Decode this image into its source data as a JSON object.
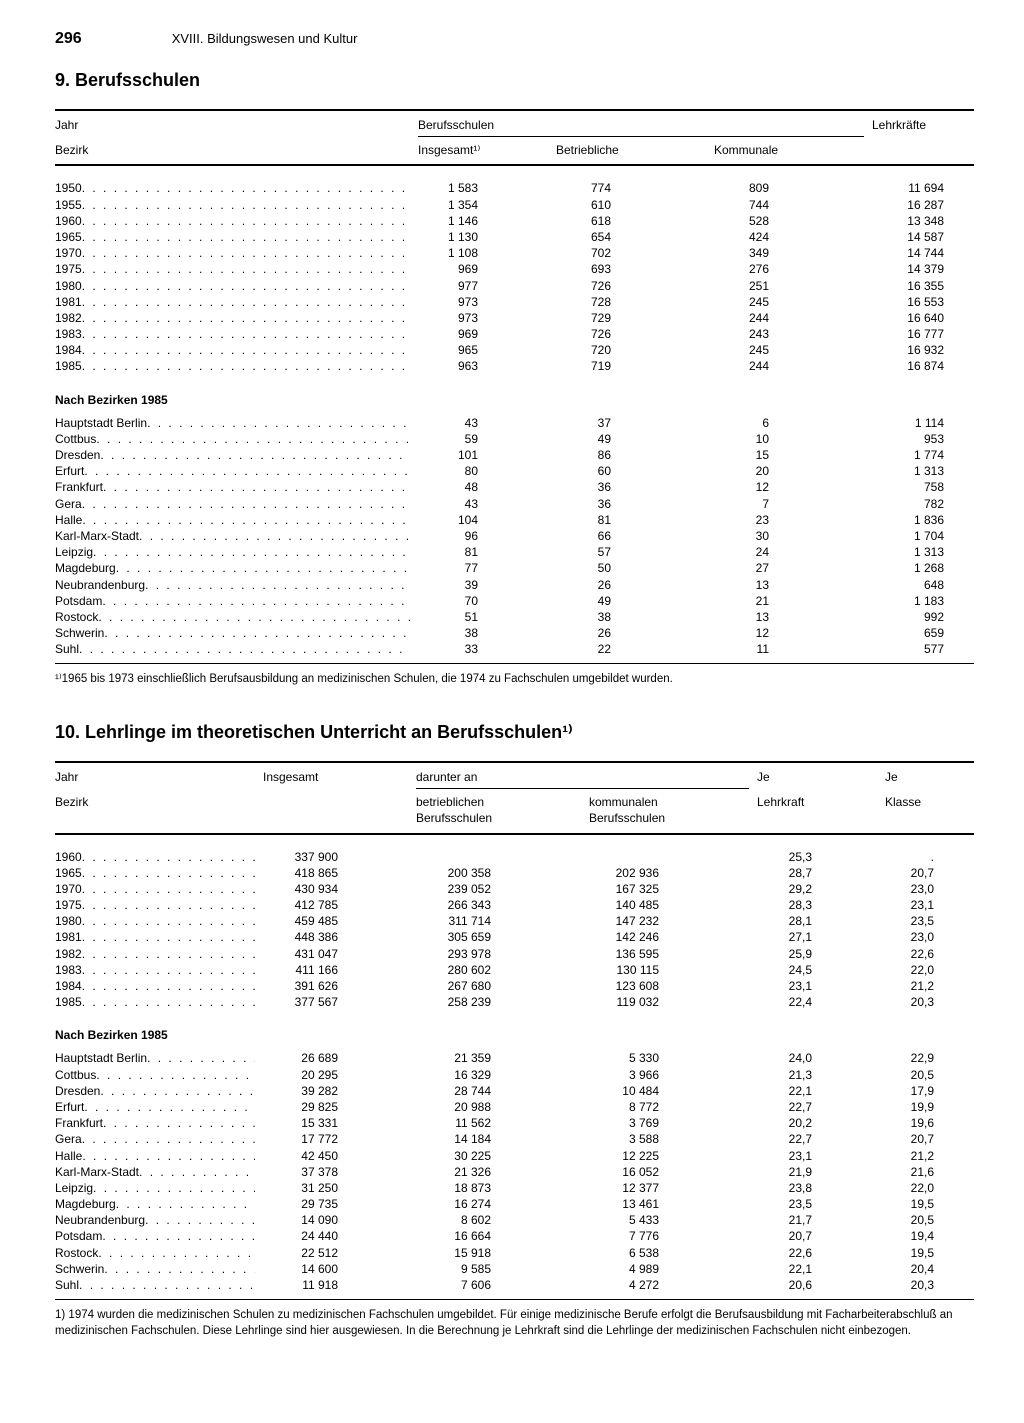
{
  "page_number": "296",
  "chapter": "XVIII. Bildungswesen und Kultur",
  "table1": {
    "title": "9. Berufsschulen",
    "row_header1": "Jahr",
    "row_header2": "Bezirk",
    "group_header": "Berufsschulen",
    "col_insgesamt": "Insgesamt¹⁾",
    "col_betrieblich": "Betriebliche",
    "col_kommunal": "Kommunale",
    "col_lehrkraefte": "Lehrkräfte",
    "years": [
      {
        "label": "1950",
        "insg": "1 583",
        "betr": "774",
        "komm": "809",
        "lk": "11 694"
      },
      {
        "label": "1955",
        "insg": "1 354",
        "betr": "610",
        "komm": "744",
        "lk": "16 287"
      },
      {
        "label": "1960",
        "insg": "1 146",
        "betr": "618",
        "komm": "528",
        "lk": "13 348"
      },
      {
        "label": "1965",
        "insg": "1 130",
        "betr": "654",
        "komm": "424",
        "lk": "14 587"
      },
      {
        "label": "1970",
        "insg": "1 108",
        "betr": "702",
        "komm": "349",
        "lk": "14 744"
      },
      {
        "label": "1975",
        "insg": "969",
        "betr": "693",
        "komm": "276",
        "lk": "14 379"
      },
      {
        "label": "1980",
        "insg": "977",
        "betr": "726",
        "komm": "251",
        "lk": "16 355"
      },
      {
        "label": "1981",
        "insg": "973",
        "betr": "728",
        "komm": "245",
        "lk": "16 553"
      },
      {
        "label": "1982",
        "insg": "973",
        "betr": "729",
        "komm": "244",
        "lk": "16 640"
      },
      {
        "label": "1983",
        "insg": "969",
        "betr": "726",
        "komm": "243",
        "lk": "16 777"
      },
      {
        "label": "1984",
        "insg": "965",
        "betr": "720",
        "komm": "245",
        "lk": "16 932"
      },
      {
        "label": "1985",
        "insg": "963",
        "betr": "719",
        "komm": "244",
        "lk": "16 874"
      }
    ],
    "bezirk_header": "Nach Bezirken 1985",
    "bezirke": [
      {
        "label": "Hauptstadt Berlin",
        "insg": "43",
        "betr": "37",
        "komm": "6",
        "lk": "1 114"
      },
      {
        "label": "Cottbus",
        "insg": "59",
        "betr": "49",
        "komm": "10",
        "lk": "953"
      },
      {
        "label": "Dresden",
        "insg": "101",
        "betr": "86",
        "komm": "15",
        "lk": "1 774"
      },
      {
        "label": "Erfurt",
        "insg": "80",
        "betr": "60",
        "komm": "20",
        "lk": "1 313"
      },
      {
        "label": "Frankfurt",
        "insg": "48",
        "betr": "36",
        "komm": "12",
        "lk": "758"
      },
      {
        "label": "Gera",
        "insg": "43",
        "betr": "36",
        "komm": "7",
        "lk": "782"
      },
      {
        "label": "Halle",
        "insg": "104",
        "betr": "81",
        "komm": "23",
        "lk": "1 836"
      },
      {
        "label": "Karl-Marx-Stadt",
        "insg": "96",
        "betr": "66",
        "komm": "30",
        "lk": "1 704"
      },
      {
        "label": "Leipzig",
        "insg": "81",
        "betr": "57",
        "komm": "24",
        "lk": "1 313"
      },
      {
        "label": "Magdeburg",
        "insg": "77",
        "betr": "50",
        "komm": "27",
        "lk": "1 268"
      },
      {
        "label": "Neubrandenburg",
        "insg": "39",
        "betr": "26",
        "komm": "13",
        "lk": "648"
      },
      {
        "label": "Potsdam",
        "insg": "70",
        "betr": "49",
        "komm": "21",
        "lk": "1 183"
      },
      {
        "label": "Rostock",
        "insg": "51",
        "betr": "38",
        "komm": "13",
        "lk": "992"
      },
      {
        "label": "Schwerin",
        "insg": "38",
        "betr": "26",
        "komm": "12",
        "lk": "659"
      },
      {
        "label": "Suhl",
        "insg": "33",
        "betr": "22",
        "komm": "11",
        "lk": "577"
      }
    ],
    "footnote": "¹⁾1965 bis 1973 einschließlich Berufsausbildung an medizinischen Schulen, die 1974 zu Fachschulen umgebildet wurden."
  },
  "table2": {
    "title": "10. Lehrlinge im theoretischen Unterricht an Berufsschulen¹⁾",
    "row_header1": "Jahr",
    "row_header2": "Bezirk",
    "col_insgesamt": "Insgesamt",
    "group_header": "darunter an",
    "col_betrieblich1": "betrieblichen",
    "col_betrieblich2": "Berufsschulen",
    "col_kommunal1": "kommunalen",
    "col_kommunal2": "Berufsschulen",
    "col_je_lk1": "Je",
    "col_je_lk2": "Lehrkraft",
    "col_je_kl1": "Je",
    "col_je_kl2": "Klasse",
    "years": [
      {
        "label": "1960",
        "insg": "337 900",
        "betr": "",
        "komm": "",
        "jelk": "25,3",
        "jekl": "."
      },
      {
        "label": "1965",
        "insg": "418 865",
        "betr": "200 358",
        "komm": "202 936",
        "jelk": "28,7",
        "jekl": "20,7"
      },
      {
        "label": "1970",
        "insg": "430 934",
        "betr": "239 052",
        "komm": "167 325",
        "jelk": "29,2",
        "jekl": "23,0"
      },
      {
        "label": "1975",
        "insg": "412 785",
        "betr": "266 343",
        "komm": "140 485",
        "jelk": "28,3",
        "jekl": "23,1"
      },
      {
        "label": "1980",
        "insg": "459 485",
        "betr": "311 714",
        "komm": "147 232",
        "jelk": "28,1",
        "jekl": "23,5"
      },
      {
        "label": "1981",
        "insg": "448 386",
        "betr": "305 659",
        "komm": "142 246",
        "jelk": "27,1",
        "jekl": "23,0"
      },
      {
        "label": "1982",
        "insg": "431 047",
        "betr": "293 978",
        "komm": "136 595",
        "jelk": "25,9",
        "jekl": "22,6"
      },
      {
        "label": "1983",
        "insg": "411 166",
        "betr": "280 602",
        "komm": "130 115",
        "jelk": "24,5",
        "jekl": "22,0"
      },
      {
        "label": "1984",
        "insg": "391 626",
        "betr": "267 680",
        "komm": "123 608",
        "jelk": "23,1",
        "jekl": "21,2"
      },
      {
        "label": "1985",
        "insg": "377 567",
        "betr": "258 239",
        "komm": "119 032",
        "jelk": "22,4",
        "jekl": "20,3"
      }
    ],
    "bezirk_header": "Nach Bezirken 1985",
    "bezirke": [
      {
        "label": "Hauptstadt Berlin",
        "insg": "26 689",
        "betr": "21 359",
        "komm": "5 330",
        "jelk": "24,0",
        "jekl": "22,9"
      },
      {
        "label": "Cottbus",
        "insg": "20 295",
        "betr": "16 329",
        "komm": "3 966",
        "jelk": "21,3",
        "jekl": "20,5"
      },
      {
        "label": "Dresden",
        "insg": "39 282",
        "betr": "28 744",
        "komm": "10 484",
        "jelk": "22,1",
        "jekl": "17,9"
      },
      {
        "label": "Erfurt",
        "insg": "29 825",
        "betr": "20 988",
        "komm": "8 772",
        "jelk": "22,7",
        "jekl": "19,9"
      },
      {
        "label": "Frankfurt",
        "insg": "15 331",
        "betr": "11 562",
        "komm": "3 769",
        "jelk": "20,2",
        "jekl": "19,6"
      },
      {
        "label": "Gera",
        "insg": "17 772",
        "betr": "14 184",
        "komm": "3 588",
        "jelk": "22,7",
        "jekl": "20,7"
      },
      {
        "label": "Halle",
        "insg": "42 450",
        "betr": "30 225",
        "komm": "12 225",
        "jelk": "23,1",
        "jekl": "21,2"
      },
      {
        "label": "Karl-Marx-Stadt",
        "insg": "37 378",
        "betr": "21 326",
        "komm": "16 052",
        "jelk": "21,9",
        "jekl": "21,6"
      },
      {
        "label": "Leipzig",
        "insg": "31 250",
        "betr": "18 873",
        "komm": "12 377",
        "jelk": "23,8",
        "jekl": "22,0"
      },
      {
        "label": "Magdeburg",
        "insg": "29 735",
        "betr": "16 274",
        "komm": "13 461",
        "jelk": "23,5",
        "jekl": "19,5"
      },
      {
        "label": "Neubrandenburg",
        "insg": "14 090",
        "betr": "8 602",
        "komm": "5 433",
        "jelk": "21,7",
        "jekl": "20,5"
      },
      {
        "label": "Potsdam",
        "insg": "24 440",
        "betr": "16 664",
        "komm": "7 776",
        "jelk": "20,7",
        "jekl": "19,4"
      },
      {
        "label": "Rostock",
        "insg": "22 512",
        "betr": "15 918",
        "komm": "6 538",
        "jelk": "22,6",
        "jekl": "19,5"
      },
      {
        "label": "Schwerin",
        "insg": "14 600",
        "betr": "9 585",
        "komm": "4 989",
        "jelk": "22,1",
        "jekl": "20,4"
      },
      {
        "label": "Suhl",
        "insg": "11 918",
        "betr": "7 606",
        "komm": "4 272",
        "jelk": "20,6",
        "jekl": "20,3"
      }
    ],
    "footnote": "1) 1974 wurden die medizinischen Schulen zu medizinischen Fachschulen umgebildet. Für einige medizinische Berufe erfolgt die Berufsausbildung mit Facharbeiterabschluß an medizinischen Fachschulen. Diese Lehrlinge sind hier ausgewiesen. In die Berechnung je Lehrkraft sind die Lehrlinge der medizinischen Fachschulen nicht einbezogen."
  }
}
